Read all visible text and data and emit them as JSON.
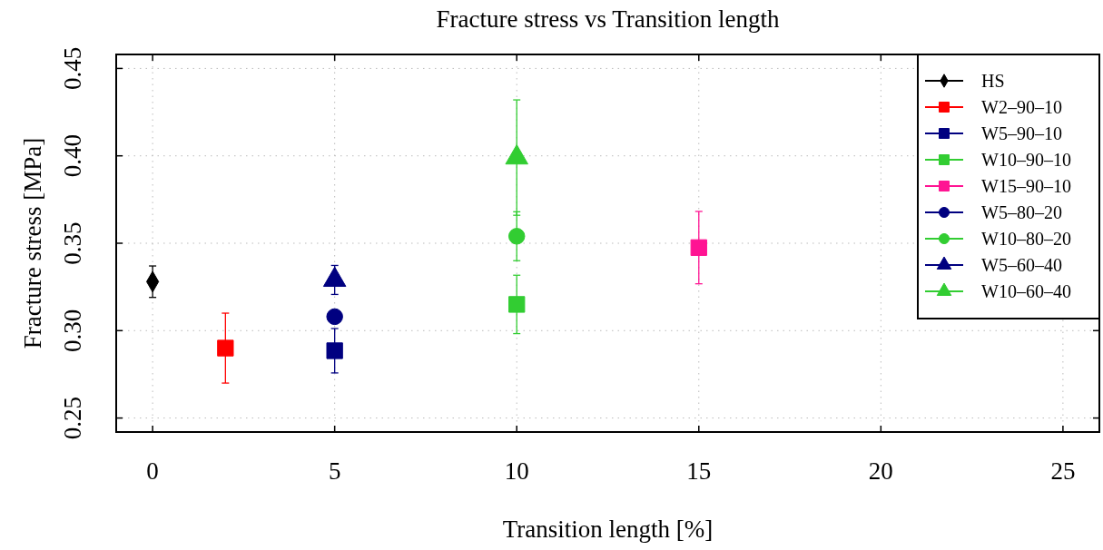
{
  "chart_data": {
    "type": "scatter",
    "title": "Fracture stress vs Transition length",
    "xlabel": "Transition length [%]",
    "ylabel": "Fracture stress [MPa]",
    "xlim": [
      -1,
      26
    ],
    "xticks": [
      0,
      5,
      10,
      15,
      20,
      25
    ],
    "ylim": [
      0.242,
      0.458
    ],
    "yticks": [
      {
        "value": 0.25,
        "label": "0.25"
      },
      {
        "value": 0.3,
        "label": "0.30"
      },
      {
        "value": 0.35,
        "label": "0.35"
      },
      {
        "value": 0.4,
        "label": "0.40"
      },
      {
        "value": 0.45,
        "label": "0.45"
      }
    ],
    "grid": true,
    "legend": "top right",
    "series": [
      {
        "name": "HS",
        "color": "#000000",
        "marker": "diamond",
        "x": [
          0
        ],
        "values": [
          0.328
        ],
        "errors": [
          0.009
        ]
      },
      {
        "name": "W2–90–10",
        "color": "#ff0000",
        "marker": "square",
        "x": [
          2
        ],
        "values": [
          0.29
        ],
        "errors": [
          0.02
        ]
      },
      {
        "name": "W5–90–10",
        "color": "#000080",
        "marker": "square",
        "x": [
          5
        ],
        "values": [
          0.2885
        ],
        "errors": [
          0.0127
        ]
      },
      {
        "name": "W10–90–10",
        "color": "#32cd32",
        "marker": "square",
        "x": [
          10
        ],
        "values": [
          0.315
        ],
        "errors": [
          0.0167
        ]
      },
      {
        "name": "W15–90–10",
        "color": "#ff1493",
        "marker": "square",
        "x": [
          15
        ],
        "values": [
          0.3475
        ],
        "errors": [
          0.0207
        ]
      },
      {
        "name": "W5–80–20",
        "color": "#000080",
        "marker": "circle",
        "x": [
          5
        ],
        "values": [
          0.308
        ]
      },
      {
        "name": "W10–80–20",
        "color": "#32cd32",
        "marker": "circle",
        "x": [
          10
        ],
        "values": [
          0.354
        ],
        "errors": [
          0.014
        ]
      },
      {
        "name": "W5–60–40",
        "color": "#000080",
        "marker": "triangle",
        "x": [
          5
        ],
        "values": [
          0.329
        ],
        "errors": [
          0.0083
        ]
      },
      {
        "name": "W10–60–40",
        "color": "#32cd32",
        "marker": "triangle",
        "x": [
          10
        ],
        "values": [
          0.399
        ],
        "errors": [
          0.033
        ]
      }
    ]
  }
}
